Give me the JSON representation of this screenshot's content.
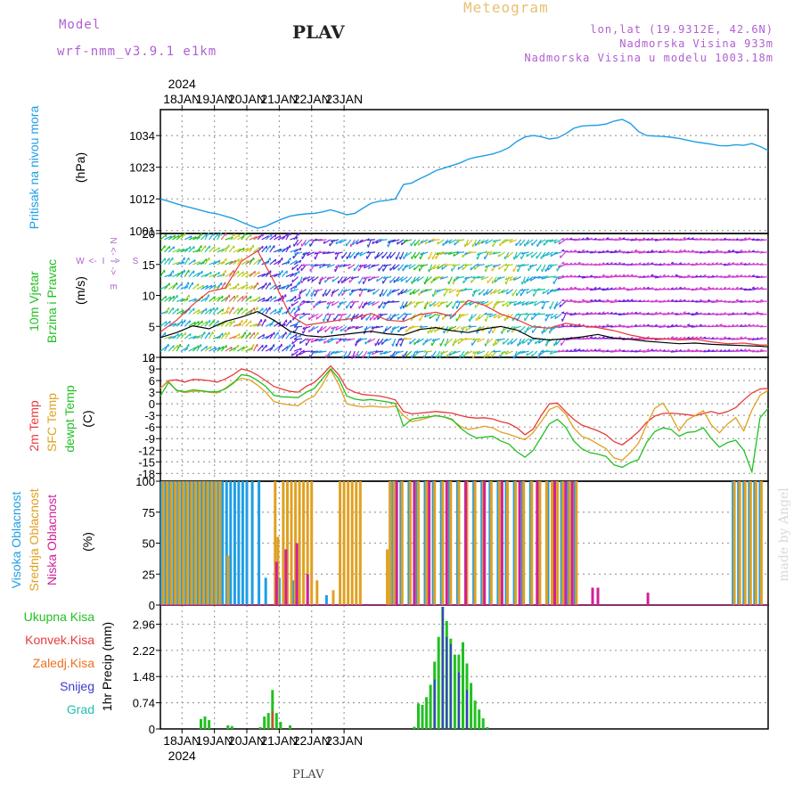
{
  "header": {
    "model_label": "Model",
    "model_name": "wrf-nmm_v3.9.1 e1km",
    "station": "PLAV",
    "product": "Meteogram",
    "coords": "lon,lat (19.9312E, 42.6N)",
    "elevation": "Nadmorska Visina 933m",
    "model_elevation": "Nadmorska Visina u modelu 1003.18m"
  },
  "footer": {
    "station": "PLAV",
    "watermark": "made by Angel"
  },
  "colors": {
    "pressure": "#1e9ee6",
    "temp2m": "#e83a3a",
    "sfc": "#e0a020",
    "dewpt": "#22c022",
    "cloud_high": "#1e9ee6",
    "cloud_mid": "#e0a020",
    "cloud_low": "#d0209a",
    "precip_total": "#22c022",
    "precip_conv": "#e83a3a",
    "precip_frozen": "#f07020",
    "snow": "#3a3ad0",
    "graupel": "#20c0b0",
    "grid": "#a0a0a0",
    "wind_gust": "#e83a3a",
    "wind_speed": "#000000"
  },
  "chart_data": [
    {
      "type": "line",
      "panel": "pressure",
      "ylabel_1": "Pritisak na nivou mora",
      "ylabel_unit": "(hPa)",
      "ylim": [
        1000,
        1043
      ],
      "yticks": [
        1001,
        1012,
        1023,
        1034
      ],
      "x_top_ticks": [
        "18JAN",
        "19JAN",
        "20JAN",
        "21JAN",
        "22JAN",
        "23JAN"
      ],
      "x_top_year": "2024",
      "x_hours": [
        0,
        6,
        12,
        18,
        24,
        30,
        36,
        42,
        48,
        54,
        60,
        66,
        72,
        78,
        84,
        90,
        96,
        102,
        108,
        114,
        120,
        126,
        132,
        138,
        144,
        150,
        156,
        162,
        168,
        174,
        180,
        186,
        192,
        198,
        204,
        210,
        216,
        222,
        228,
        234,
        240,
        246,
        252,
        258,
        264,
        270,
        276,
        282,
        288,
        294,
        300,
        306,
        312,
        318,
        324,
        330,
        336,
        342,
        348,
        354,
        360,
        366,
        372,
        378,
        384,
        390,
        396,
        402,
        408,
        414,
        420,
        426,
        432,
        438,
        444,
        450
      ],
      "series": [
        {
          "values": [
            1012.0,
            1011.2,
            1010.3,
            1009.5,
            1008.8,
            1008.0,
            1007.3,
            1006.8,
            1006.0,
            1005.2,
            1004.0,
            1002.8,
            1001.8,
            1002.5,
            1003.8,
            1005.0,
            1006.0,
            1006.5,
            1006.8,
            1007.0,
            1007.5,
            1008.2,
            1007.4,
            1006.5,
            1007.0,
            1008.8,
            1010.5,
            1011.2,
            1011.5,
            1012.0,
            1017.0,
            1017.5,
            1019.0,
            1020.3,
            1021.8,
            1022.7,
            1023.6,
            1024.5,
            1025.8,
            1026.5,
            1027.0,
            1027.6,
            1028.5,
            1029.8,
            1032.0,
            1033.5,
            1034.0,
            1033.6,
            1032.8,
            1033.2,
            1034.6,
            1036.5,
            1037.3,
            1037.5,
            1037.6,
            1038.0,
            1039.0,
            1039.6,
            1038.2,
            1035.4,
            1034.0,
            1033.8,
            1033.7,
            1033.4,
            1033.0,
            1032.4,
            1031.8,
            1031.4,
            1031.0,
            1030.5,
            1030.4,
            1030.8,
            1030.6,
            1031.2,
            1030.2,
            1028.8
          ]
        }
      ]
    },
    {
      "type": "line",
      "panel": "wind",
      "ylabel_1": "10m Vjetar",
      "ylabel_2": "Brzina i Pravac",
      "ylabel_unit": "(m/s)",
      "direction_key": [
        "N",
        "<-",
        "I",
        "->",
        "E",
        "W",
        "<-",
        "I",
        "->",
        "S"
      ],
      "ylim": [
        0,
        20
      ],
      "yticks": [
        0,
        5,
        10,
        15,
        20
      ],
      "x_hours": [
        0,
        12,
        24,
        36,
        48,
        60,
        72,
        84,
        96,
        108,
        120,
        132,
        144,
        156,
        168,
        180,
        192,
        204,
        216,
        228,
        240,
        252,
        264,
        276,
        288,
        300,
        312,
        324,
        336,
        348,
        360,
        372,
        384,
        396,
        408,
        420,
        432,
        444,
        450
      ],
      "series": [
        {
          "name": "speed",
          "values": [
            3.2,
            4.0,
            5.1,
            4.6,
            5.8,
            6.5,
            7.4,
            6.0,
            4.2,
            3.5,
            3.3,
            3.6,
            3.9,
            4.2,
            3.8,
            3.6,
            4.5,
            4.8,
            4.3,
            4.0,
            4.6,
            5.0,
            4.4,
            3.1,
            2.8,
            3.0,
            3.3,
            3.7,
            3.1,
            2.9,
            2.6,
            2.4,
            2.2,
            2.3,
            2.1,
            2.0,
            1.9,
            1.8,
            1.7
          ]
        },
        {
          "name": "gust",
          "values": [
            4.1,
            6.0,
            8.5,
            10.6,
            11.2,
            15.5,
            17.2,
            12.3,
            6.8,
            5.2,
            5.6,
            6.0,
            6.3,
            7.1,
            6.0,
            5.8,
            6.9,
            7.3,
            6.6,
            9.2,
            8.4,
            7.0,
            6.1,
            4.9,
            4.7,
            5.5,
            5.1,
            4.8,
            4.3,
            3.6,
            3.1,
            3.0,
            2.8,
            2.9,
            2.5,
            2.2,
            2.3,
            2.0,
            2.0
          ]
        }
      ]
    },
    {
      "type": "line",
      "panel": "temperature",
      "ylabel_1": "2m Temp",
      "ylabel_2": "SFC Temp",
      "ylabel_3": "dewpt Temp",
      "ylabel_unit": "(C)",
      "ylim": [
        -20,
        12
      ],
      "yticks": [
        -18,
        -15,
        -12,
        -9,
        -6,
        -3,
        0,
        3,
        6,
        9,
        12
      ],
      "x_hours": [
        0,
        6,
        12,
        18,
        24,
        30,
        36,
        42,
        48,
        54,
        60,
        66,
        72,
        78,
        84,
        90,
        96,
        102,
        108,
        114,
        120,
        126,
        132,
        138,
        144,
        150,
        156,
        162,
        168,
        174,
        180,
        186,
        192,
        198,
        204,
        210,
        216,
        222,
        228,
        234,
        240,
        246,
        252,
        258,
        264,
        270,
        276,
        282,
        288,
        294,
        300,
        306,
        312,
        318,
        324,
        330,
        336,
        342,
        348,
        354,
        360,
        366,
        372,
        378,
        384,
        390,
        396,
        402,
        408,
        414,
        420,
        426,
        432,
        438,
        444,
        450
      ],
      "series": [
        {
          "name": "2m Temp",
          "values": [
            4.0,
            6.0,
            6.2,
            5.6,
            6.3,
            6.2,
            6.0,
            5.6,
            6.4,
            7.5,
            9.0,
            8.5,
            7.4,
            6.0,
            4.5,
            3.8,
            3.2,
            3.0,
            4.5,
            5.5,
            7.5,
            9.8,
            7.5,
            4.0,
            3.0,
            2.4,
            2.2,
            2.0,
            1.6,
            1.0,
            -2.0,
            -2.6,
            -2.4,
            -2.2,
            -2.0,
            -2.2,
            -2.4,
            -3.0,
            -3.5,
            -3.7,
            -3.6,
            -3.9,
            -4.6,
            -5.1,
            -6.2,
            -8.0,
            -6.5,
            -3.0,
            0.0,
            0.2,
            -2.0,
            -4.0,
            -5.5,
            -6.2,
            -7.0,
            -8.0,
            -9.8,
            -10.6,
            -9.0,
            -7.2,
            -4.8,
            -3.2,
            -2.5,
            -2.4,
            -2.6,
            -2.8,
            -3.1,
            -2.5,
            -2.0,
            -2.6,
            -2.0,
            -1.0,
            1.0,
            2.8,
            3.8,
            4.0
          ]
        },
        {
          "name": "SFC Temp",
          "values": [
            4.0,
            5.8,
            3.4,
            2.9,
            3.2,
            3.3,
            3.0,
            2.8,
            4.0,
            5.5,
            6.6,
            6.2,
            4.8,
            3.0,
            0.6,
            0.0,
            -0.3,
            -0.5,
            1.0,
            2.0,
            5.0,
            8.8,
            5.0,
            0.0,
            -0.5,
            -0.8,
            -0.6,
            -0.8,
            -0.9,
            -0.6,
            -3.0,
            -4.6,
            -4.2,
            -3.6,
            -3.0,
            -3.4,
            -4.2,
            -5.8,
            -6.6,
            -6.3,
            -5.8,
            -6.2,
            -7.3,
            -7.9,
            -8.6,
            -9.3,
            -7.4,
            -4.6,
            -1.5,
            -0.6,
            -2.6,
            -6.2,
            -8.4,
            -9.2,
            -10.4,
            -11.6,
            -14.0,
            -14.6,
            -12.6,
            -10.2,
            -5.4,
            -1.2,
            0.2,
            -3.0,
            -7.0,
            -4.2,
            -3.0,
            -1.8,
            -5.5,
            -7.5,
            -5.2,
            -3.6,
            -7.0,
            -1.6,
            2.2,
            3.5
          ]
        },
        {
          "name": "dewpt Temp",
          "values": [
            2.0,
            5.5,
            3.5,
            3.1,
            3.6,
            3.4,
            3.1,
            3.1,
            3.8,
            5.3,
            7.5,
            7.2,
            6.0,
            4.5,
            2.2,
            1.8,
            1.7,
            1.6,
            3.0,
            4.0,
            6.5,
            9.0,
            6.5,
            2.0,
            1.2,
            0.9,
            1.1,
            0.8,
            0.5,
            0.1,
            -5.8,
            -4.0,
            -3.6,
            -3.4,
            -3.1,
            -3.4,
            -4.0,
            -6.2,
            -7.8,
            -8.8,
            -8.6,
            -8.4,
            -9.6,
            -10.4,
            -12.4,
            -13.8,
            -12.0,
            -8.6,
            -5.2,
            -4.0,
            -6.0,
            -9.6,
            -11.6,
            -12.6,
            -13.0,
            -13.6,
            -15.8,
            -16.4,
            -15.2,
            -14.4,
            -10.0,
            -7.2,
            -6.2,
            -6.6,
            -8.4,
            -7.4,
            -7.2,
            -6.2,
            -9.0,
            -11.2,
            -10.0,
            -9.4,
            -12.0,
            -17.6,
            -3.6,
            -1.2
          ]
        }
      ]
    },
    {
      "type": "bar",
      "panel": "clouds",
      "ylabel_1": "Visoka Oblacnost",
      "ylabel_2": "Srednja Oblacnost",
      "ylabel_3": "Niska Oblacnost",
      "ylabel_unit": "(%)",
      "ylim": [
        0,
        100
      ],
      "yticks": [
        0,
        25,
        50,
        75,
        100
      ],
      "series": [
        {
          "name": "high",
          "x": [
            1,
            4,
            7,
            10,
            13,
            16,
            19,
            22,
            25,
            28,
            31,
            34,
            37,
            40,
            43,
            46,
            49,
            52,
            55,
            58,
            61,
            64,
            68,
            73,
            78,
            88,
            98,
            118,
            123,
            128,
            130,
            172,
            178,
            184,
            190,
            196,
            202,
            208,
            214,
            220,
            226,
            232,
            238,
            244,
            250,
            256,
            262,
            268,
            274,
            280,
            287,
            292,
            297,
            302,
            307,
            312,
            424,
            428,
            432,
            436,
            440,
            444
          ],
          "values": [
            100,
            100,
            100,
            100,
            100,
            100,
            100,
            100,
            100,
            100,
            100,
            100,
            100,
            100,
            100,
            100,
            100,
            100,
            100,
            100,
            100,
            100,
            100,
            100,
            22,
            22,
            20,
            0,
            8,
            0,
            0,
            100,
            100,
            100,
            100,
            100,
            100,
            100,
            100,
            100,
            100,
            100,
            100,
            100,
            100,
            100,
            100,
            100,
            100,
            100,
            100,
            100,
            100,
            100,
            100,
            0,
            100,
            100,
            100,
            100,
            100,
            100
          ]
        },
        {
          "name": "mid",
          "x": [
            2,
            5,
            8,
            11,
            14,
            17,
            20,
            23,
            26,
            29,
            32,
            35,
            38,
            41,
            44,
            50,
            85,
            87,
            91,
            94,
            97,
            100,
            103,
            106,
            109,
            112,
            116,
            128,
            133,
            136,
            139,
            142,
            145,
            148,
            168,
            170,
            173,
            179,
            185,
            191,
            197,
            203,
            209,
            215,
            221,
            227,
            233,
            239,
            245,
            251,
            257,
            263,
            269,
            275,
            281,
            286,
            290,
            294,
            298,
            303,
            308,
            425,
            429,
            433,
            437,
            441,
            445
          ],
          "values": [
            100,
            100,
            100,
            100,
            100,
            100,
            100,
            100,
            100,
            100,
            100,
            100,
            100,
            100,
            100,
            40,
            100,
            55,
            100,
            100,
            100,
            100,
            100,
            100,
            100,
            100,
            20,
            12,
            100,
            100,
            100,
            100,
            100,
            100,
            45,
            100,
            100,
            100,
            100,
            100,
            100,
            100,
            100,
            100,
            100,
            100,
            100,
            100,
            100,
            100,
            100,
            100,
            100,
            100,
            100,
            100,
            100,
            100,
            100,
            100,
            100,
            100,
            100,
            100,
            100,
            100,
            100
          ]
        },
        {
          "name": "low",
          "x": [
            86,
            93,
            101,
            109,
            175,
            188,
            199,
            212,
            226,
            240,
            253,
            266,
            279,
            292,
            300,
            305,
            320,
            324,
            361
          ],
          "values": [
            35,
            45,
            50,
            25,
            100,
            100,
            100,
            100,
            100,
            100,
            100,
            100,
            100,
            100,
            100,
            100,
            14,
            14,
            10
          ]
        }
      ]
    },
    {
      "type": "bar",
      "panel": "precip",
      "ylabel_1": "1hr Precip (mm)",
      "legend": [
        "Ukupna Kisa",
        "Konvek.Kisa",
        "Zaledj.Kisa",
        "Snijeg",
        "Grad"
      ],
      "ylim": [
        0,
        3.5
      ],
      "yticks": [
        0,
        0.74,
        1.48,
        2.22,
        2.96
      ],
      "series": [
        {
          "name": "Ukupna Kisa",
          "x": [
            30,
            33,
            36,
            50,
            53,
            74,
            77,
            80,
            83,
            86,
            89,
            96,
            188,
            191,
            194,
            197,
            200,
            203,
            206,
            209,
            212,
            215,
            218,
            221,
            224,
            227,
            230,
            233,
            236,
            239,
            242
          ],
          "values": [
            0.28,
            0.35,
            0.25,
            0.1,
            0.08,
            0.05,
            0.35,
            0.45,
            1.1,
            0.45,
            0.2,
            0.1,
            0.06,
            0.72,
            0.68,
            0.9,
            1.25,
            1.9,
            2.6,
            3.45,
            3.05,
            2.55,
            2.1,
            2.1,
            2.45,
            1.85,
            1.3,
            0.8,
            0.55,
            0.3,
            0.05
          ]
        },
        {
          "name": "Konvek.Kisa",
          "x": [
            83
          ],
          "values": [
            0.5
          ]
        },
        {
          "name": "Snijeg",
          "x": [
            203,
            209,
            212,
            215,
            221,
            227
          ],
          "values": [
            1.4,
            3.45,
            2.6,
            2.4,
            1.6,
            1.1
          ]
        }
      ]
    }
  ],
  "x_axis_bottom": {
    "ticks": [
      "18JAN",
      "19JAN",
      "20JAN",
      "21JAN",
      "22JAN",
      "23JAN"
    ],
    "year": "2024"
  }
}
